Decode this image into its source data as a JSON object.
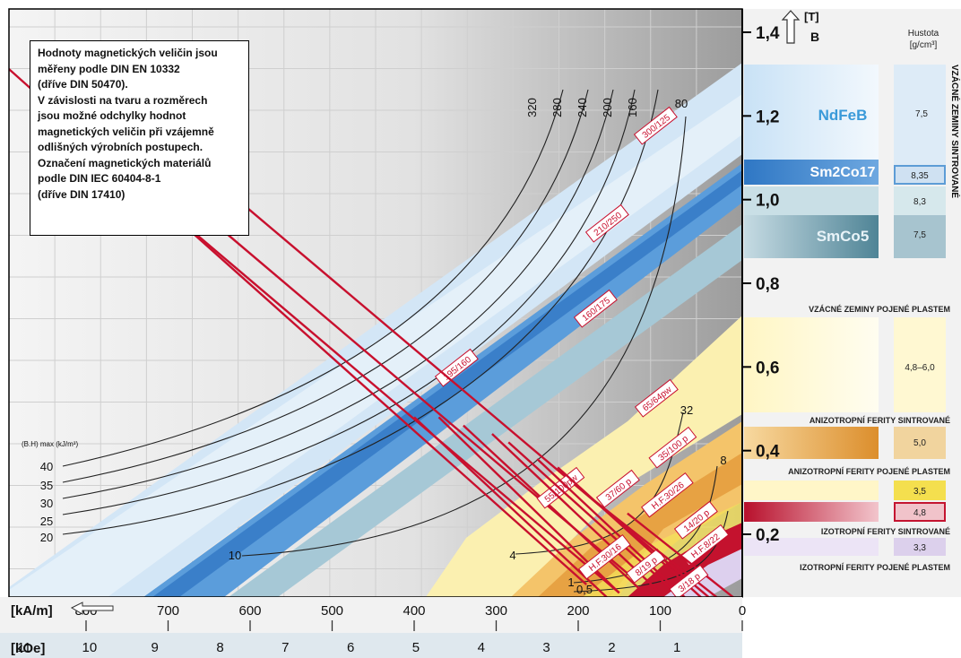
{
  "note_lines": [
    "Hodnoty magnetických veličin jsou",
    "měřeny podle DIN EN 10332",
    "(dříve DIN 50470).",
    "V závislosti na tvaru a rozměrech",
    "jsou možné odchylky hodnot",
    "magnetických veličin při vzájemně",
    "odlišných výrobních postupech.",
    "Označení magnetických materiálů",
    "podle DIN IEC 60404-8-1",
    "(dříve DIN 17410)"
  ],
  "colors": {
    "grid_line": "#c8c8c8",
    "bg_gray": "#c6c6c6",
    "band_light_blue": "#d6e8f6",
    "band_blue": "#5f9fd8",
    "band_teal": "#9ec4d2",
    "band_yellow": "#fbf1b0",
    "band_orange": "#e8a040",
    "band_red": "#c8283c",
    "band_lilac": "#dcd0ea",
    "red_line": "#c8102e",
    "black_curve": "#222222",
    "axis_blue_text": "#3a9ad9"
  },
  "chart_data": {
    "type": "line",
    "title": "",
    "xlabel": "[kA/m]",
    "x2label": "[kOe]",
    "ylabel": "B [T]",
    "y_axis_arrow_label": "[T]",
    "y_axis_symbol": "B",
    "x_direction": "reversed",
    "xlim": [
      0,
      900
    ],
    "ylim": [
      0.05,
      1.45
    ],
    "x_ticks": [
      0,
      100,
      200,
      300,
      400,
      500,
      600,
      700,
      800
    ],
    "x_tick_labels": [
      "0",
      "100",
      "200",
      "300",
      "400",
      "500",
      "600",
      "700",
      "800"
    ],
    "koe_ticks": [
      1,
      2,
      3,
      4,
      5,
      6,
      7,
      8,
      9,
      10,
      11
    ],
    "koe_tick_labels": [
      "1",
      "2",
      "3",
      "4",
      "5",
      "6",
      "7",
      "8",
      "9",
      "10",
      "11"
    ],
    "y_ticks": [
      0.2,
      0.4,
      0.6,
      0.8,
      1.0,
      1.2,
      1.4
    ],
    "y_tick_labels": [
      "0,2",
      "0,4",
      "0,6",
      "0,8",
      "1,0",
      "1,2",
      "1,4"
    ],
    "grid": true,
    "demagnetization_lines": [
      {
        "label": "300/125",
        "x": [
          910,
          190
        ],
        "y": [
          1.34,
          0.08
        ]
      },
      {
        "label": "210/250",
        "x": [
          860,
          150
        ],
        "y": [
          1.24,
          0.06
        ]
      },
      {
        "label": "195/160",
        "x": [
          840,
          130
        ],
        "y": [
          1.27,
          0.09
        ]
      },
      {
        "label": "160/175",
        "x": [
          700,
          60
        ],
        "y": [
          1.14,
          0.08
        ]
      },
      {
        "label": "65/64pw",
        "x": [
          400,
          160
        ],
        "y": [
          0.48,
          0.04
        ]
      },
      {
        "label": "35/100 p",
        "x": [
          370,
          150
        ],
        "y": [
          0.48,
          0.06
        ]
      },
      {
        "label": "55/100pw",
        "x": [
          340,
          120
        ],
        "y": [
          0.46,
          0.06
        ]
      },
      {
        "label": "37/60 p",
        "x": [
          305,
          100
        ],
        "y": [
          0.44,
          0.06
        ]
      },
      {
        "label": "H.F.30/26",
        "x": [
          285,
          70
        ],
        "y": [
          0.42,
          0.04
        ]
      },
      {
        "label": "14/20 p",
        "x": [
          250,
          65
        ],
        "y": [
          0.38,
          0.04
        ]
      },
      {
        "label": "H.F.30/16",
        "x": [
          225,
          45
        ],
        "y": [
          0.36,
          0.04
        ]
      },
      {
        "label": "8/19 p",
        "x": [
          205,
          35
        ],
        "y": [
          0.32,
          0.04
        ]
      },
      {
        "label": "H.F.8/22",
        "x": [
          180,
          25
        ],
        "y": [
          0.28,
          0.04
        ]
      },
      {
        "label": "3/18 p",
        "x": [
          140,
          5
        ],
        "y": [
          0.25,
          0.04
        ]
      }
    ],
    "bh_curves": {
      "axis_label": "(B.H) max (kJ/m³)",
      "labels": [
        "40",
        "35",
        "30",
        "25",
        "20",
        "10",
        "320",
        "280",
        "240",
        "200",
        "160",
        "80",
        "32",
        "8",
        "4",
        "1",
        "0,5"
      ]
    },
    "materials": [
      {
        "name": "NdFeB",
        "density": "7,5"
      },
      {
        "name": "Sm2Co17",
        "density": "8,35"
      },
      {
        "name": "",
        "density": "8,3"
      },
      {
        "name": "SmCo5",
        "density": "7,5"
      },
      {
        "name": "VZÁCNÉ ZEMINY POJENÉ PLASTEM",
        "density": "4,8–6,0"
      },
      {
        "name": "ANIZOTROPNÍ FERITY SINTROVANÉ",
        "density": "5,0"
      },
      {
        "name": "ANIZOTROPNÍ FERITY POJENÉ PLASTEM",
        "density": "3,5"
      },
      {
        "name": "",
        "density": "4,8"
      },
      {
        "name": "IZOTROPNÍ FERITY SINTROVANÉ",
        "density": "3,3"
      },
      {
        "name": "IZOTROPNÍ FERITY POJENÉ PLASTEM",
        "density": ""
      }
    ],
    "density_header": [
      "Hustota",
      "[g/cm³]"
    ],
    "side_label": "VZÁCNÉ ZEMINY SINTROVANÉ"
  }
}
